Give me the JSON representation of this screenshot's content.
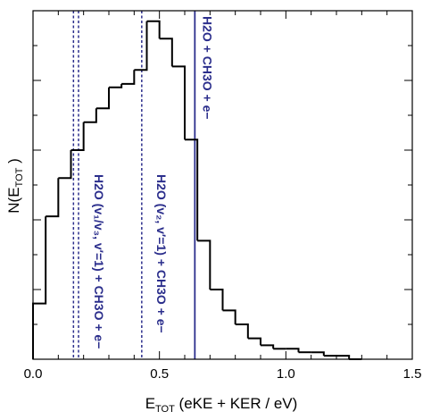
{
  "chart_data": {
    "type": "histogram",
    "title": "",
    "xlabel": {
      "main": "E",
      "sub": "TOT",
      "rest": " (eKE + KER / eV)"
    },
    "ylabel": {
      "main": "N(E",
      "sub": "TOT",
      "rest": " )"
    },
    "xlim": [
      0.0,
      1.5
    ],
    "ylim": [
      0,
      100
    ],
    "x_ticks": [
      0.0,
      0.5,
      1.0,
      1.5
    ],
    "x_tick_labels": [
      "0.0",
      "0.5",
      "1.0",
      "1.5"
    ],
    "y_tick_labels": [],
    "bin_width": 0.05,
    "bin_starts": [
      0.0,
      0.05,
      0.1,
      0.15,
      0.2,
      0.25,
      0.3,
      0.35,
      0.4,
      0.45,
      0.5,
      0.55,
      0.6,
      0.65,
      0.7,
      0.75,
      0.8,
      0.85,
      0.9,
      0.95,
      1.0,
      1.05,
      1.1,
      1.15,
      1.2,
      1.25
    ],
    "values": [
      16,
      41,
      52,
      60,
      68,
      72,
      78,
      79,
      83,
      97,
      92,
      84,
      63,
      34,
      20,
      14,
      10,
      6,
      4,
      3,
      3,
      2,
      2,
      1,
      1,
      0
    ],
    "reference_lines": [
      {
        "x": 0.16,
        "style": "dashed"
      },
      {
        "x": 0.18,
        "style": "dashed"
      },
      {
        "x": 0.43,
        "style": "dashed"
      },
      {
        "x": 0.64,
        "style": "solid"
      }
    ],
    "line_color": "#2b2e8c",
    "histogram_color": "#000000",
    "annotations": {
      "solid": {
        "x": 0.64,
        "lines": [
          "H2O + CH3O + e−"
        ]
      },
      "v2": {
        "x": 0.43,
        "lines": [
          "H2O (v₂, v′=1) + CH3O + e−"
        ]
      },
      "v1v3": {
        "x": 0.18,
        "lines": [
          "H2O (v₁/v₃, v′=1) + CH3O + e−"
        ]
      }
    }
  }
}
